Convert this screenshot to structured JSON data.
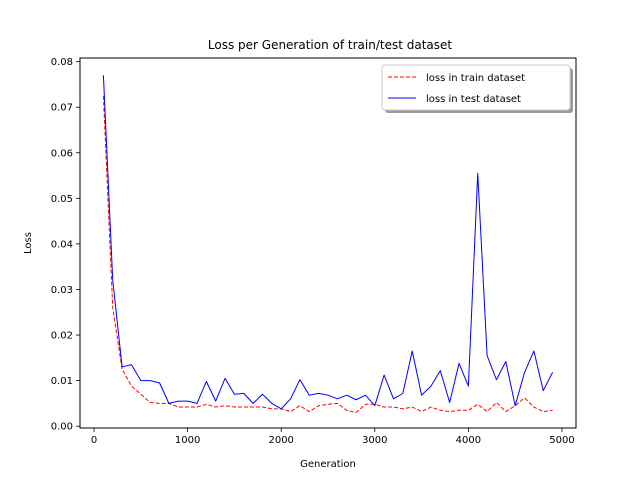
{
  "chart_data": {
    "type": "line",
    "title": "Loss per Generation of train/test dataset",
    "xlabel": "Generation",
    "ylabel": "Loss",
    "xlim": [
      -150,
      5150
    ],
    "ylim": [
      -0.0004,
      0.0808
    ],
    "x_ticks": [
      0,
      1000,
      2000,
      3000,
      4000,
      5000
    ],
    "y_ticks": [
      0.0,
      0.01,
      0.02,
      0.03,
      0.04,
      0.05,
      0.06,
      0.07,
      0.08
    ],
    "x_tick_labels": [
      "0",
      "1000",
      "2000",
      "3000",
      "4000",
      "5000"
    ],
    "y_tick_labels": [
      "0.00",
      "0.01",
      "0.02",
      "0.03",
      "0.04",
      "0.05",
      "0.06",
      "0.07",
      "0.08"
    ],
    "grid": false,
    "legend_position": "top-right",
    "x": [
      100,
      200,
      300,
      400,
      500,
      600,
      700,
      800,
      900,
      1000,
      1100,
      1200,
      1300,
      1400,
      1500,
      1600,
      1700,
      1800,
      1900,
      2000,
      2100,
      2200,
      2300,
      2400,
      2500,
      2600,
      2700,
      2800,
      2900,
      3000,
      3100,
      3200,
      3300,
      3400,
      3500,
      3600,
      3700,
      3800,
      3900,
      4000,
      4100,
      4200,
      4300,
      4400,
      4500,
      4600,
      4700,
      4800,
      4900
    ],
    "series": [
      {
        "name": "loss in train dataset",
        "color": "#ff0000",
        "dash": "dashed",
        "values": [
          0.0725,
          0.026,
          0.0125,
          0.0088,
          0.007,
          0.0052,
          0.005,
          0.005,
          0.0042,
          0.0042,
          0.0042,
          0.0048,
          0.0042,
          0.0045,
          0.0042,
          0.0042,
          0.0042,
          0.0042,
          0.0038,
          0.0038,
          0.0032,
          0.0045,
          0.0032,
          0.0045,
          0.0048,
          0.005,
          0.0035,
          0.003,
          0.0048,
          0.0048,
          0.0042,
          0.0042,
          0.0038,
          0.0042,
          0.0032,
          0.0042,
          0.0035,
          0.0032,
          0.0035,
          0.0035,
          0.0048,
          0.0032,
          0.0052,
          0.0032,
          0.0045,
          0.0062,
          0.0042,
          0.0032,
          0.0035
        ]
      },
      {
        "name": "loss in test dataset",
        "color": "#0000ff",
        "dash": "solid",
        "values": [
          0.077,
          0.032,
          0.013,
          0.0135,
          0.01,
          0.01,
          0.0095,
          0.005,
          0.0055,
          0.0055,
          0.005,
          0.0098,
          0.0055,
          0.0105,
          0.007,
          0.0072,
          0.005,
          0.007,
          0.005,
          0.0038,
          0.006,
          0.0102,
          0.0068,
          0.0072,
          0.0068,
          0.006,
          0.0068,
          0.0058,
          0.0068,
          0.0045,
          0.0112,
          0.006,
          0.0072,
          0.0165,
          0.0068,
          0.0088,
          0.0122,
          0.0052,
          0.0138,
          0.0088,
          0.0555,
          0.0155,
          0.0102,
          0.0142,
          0.0045,
          0.0118,
          0.0165,
          0.0078,
          0.0118
        ]
      }
    ]
  }
}
